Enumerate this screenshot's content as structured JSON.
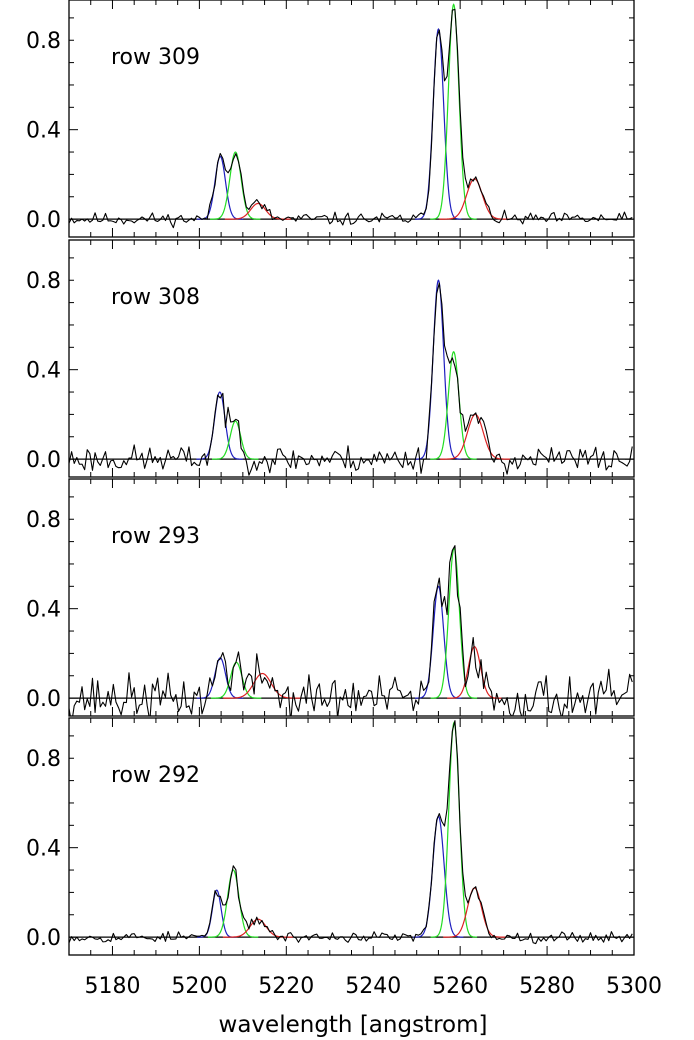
{
  "chart_data": {
    "type": "line",
    "xlabel": "wavelength [angstrom]",
    "ylabel": "",
    "xlim": [
      5170,
      5300
    ],
    "ylim": [
      -0.08,
      0.98
    ],
    "x_ticks": [
      5180,
      5200,
      5220,
      5240,
      5260,
      5280,
      5300
    ],
    "y_ticks": [
      0.0,
      0.4,
      0.8
    ],
    "y_tick_labels": [
      "0.0",
      "0.4",
      "0.8"
    ],
    "legend": "none",
    "series_colors": {
      "observed": "#000000",
      "blue_fit": "#1f1fbf",
      "green_fit": "#22dd22",
      "red_fit": "#dd2222",
      "baseline": "#000000"
    },
    "panels": [
      {
        "label": "row 309",
        "noise": 0.014,
        "seed": 11,
        "components": [
          {
            "color": "blue",
            "center": 5204.8,
            "amplitude": 0.28,
            "sigma": 1.2
          },
          {
            "color": "green",
            "center": 5208.3,
            "amplitude": 0.3,
            "sigma": 1.3
          },
          {
            "color": "red",
            "center": 5213.5,
            "amplitude": 0.07,
            "sigma": 1.7
          },
          {
            "color": "blue",
            "center": 5255.0,
            "amplitude": 0.85,
            "sigma": 1.2
          },
          {
            "color": "green",
            "center": 5258.5,
            "amplitude": 0.96,
            "sigma": 1.2
          },
          {
            "color": "red",
            "center": 5263.3,
            "amplitude": 0.18,
            "sigma": 1.8
          }
        ]
      },
      {
        "label": "row 308",
        "noise": 0.03,
        "seed": 23,
        "components": [
          {
            "color": "blue",
            "center": 5204.7,
            "amplitude": 0.3,
            "sigma": 1.2
          },
          {
            "color": "green",
            "center": 5208.3,
            "amplitude": 0.17,
            "sigma": 1.2
          },
          {
            "color": "blue",
            "center": 5255.0,
            "amplitude": 0.8,
            "sigma": 1.2
          },
          {
            "color": "green",
            "center": 5258.5,
            "amplitude": 0.48,
            "sigma": 1.2
          },
          {
            "color": "red",
            "center": 5263.5,
            "amplitude": 0.2,
            "sigma": 1.8
          }
        ]
      },
      {
        "label": "row 293",
        "noise": 0.05,
        "seed": 37,
        "components": [
          {
            "color": "blue",
            "center": 5204.8,
            "amplitude": 0.18,
            "sigma": 1.2
          },
          {
            "color": "green",
            "center": 5208.5,
            "amplitude": 0.16,
            "sigma": 1.3
          },
          {
            "color": "red",
            "center": 5214.5,
            "amplitude": 0.11,
            "sigma": 2.0
          },
          {
            "color": "blue",
            "center": 5255.0,
            "amplitude": 0.5,
            "sigma": 1.2
          },
          {
            "color": "green",
            "center": 5258.6,
            "amplitude": 0.67,
            "sigma": 1.2
          },
          {
            "color": "red",
            "center": 5263.3,
            "amplitude": 0.23,
            "sigma": 1.4
          }
        ]
      },
      {
        "label": "row 292",
        "noise": 0.012,
        "seed": 53,
        "components": [
          {
            "color": "blue",
            "center": 5204.0,
            "amplitude": 0.21,
            "sigma": 1.0
          },
          {
            "color": "green",
            "center": 5207.8,
            "amplitude": 0.3,
            "sigma": 1.3
          },
          {
            "color": "red",
            "center": 5213.5,
            "amplitude": 0.08,
            "sigma": 1.8
          },
          {
            "color": "blue",
            "center": 5255.0,
            "amplitude": 0.54,
            "sigma": 1.3
          },
          {
            "color": "green",
            "center": 5258.6,
            "amplitude": 0.96,
            "sigma": 1.2
          },
          {
            "color": "red",
            "center": 5263.3,
            "amplitude": 0.22,
            "sigma": 1.6
          }
        ]
      }
    ]
  }
}
